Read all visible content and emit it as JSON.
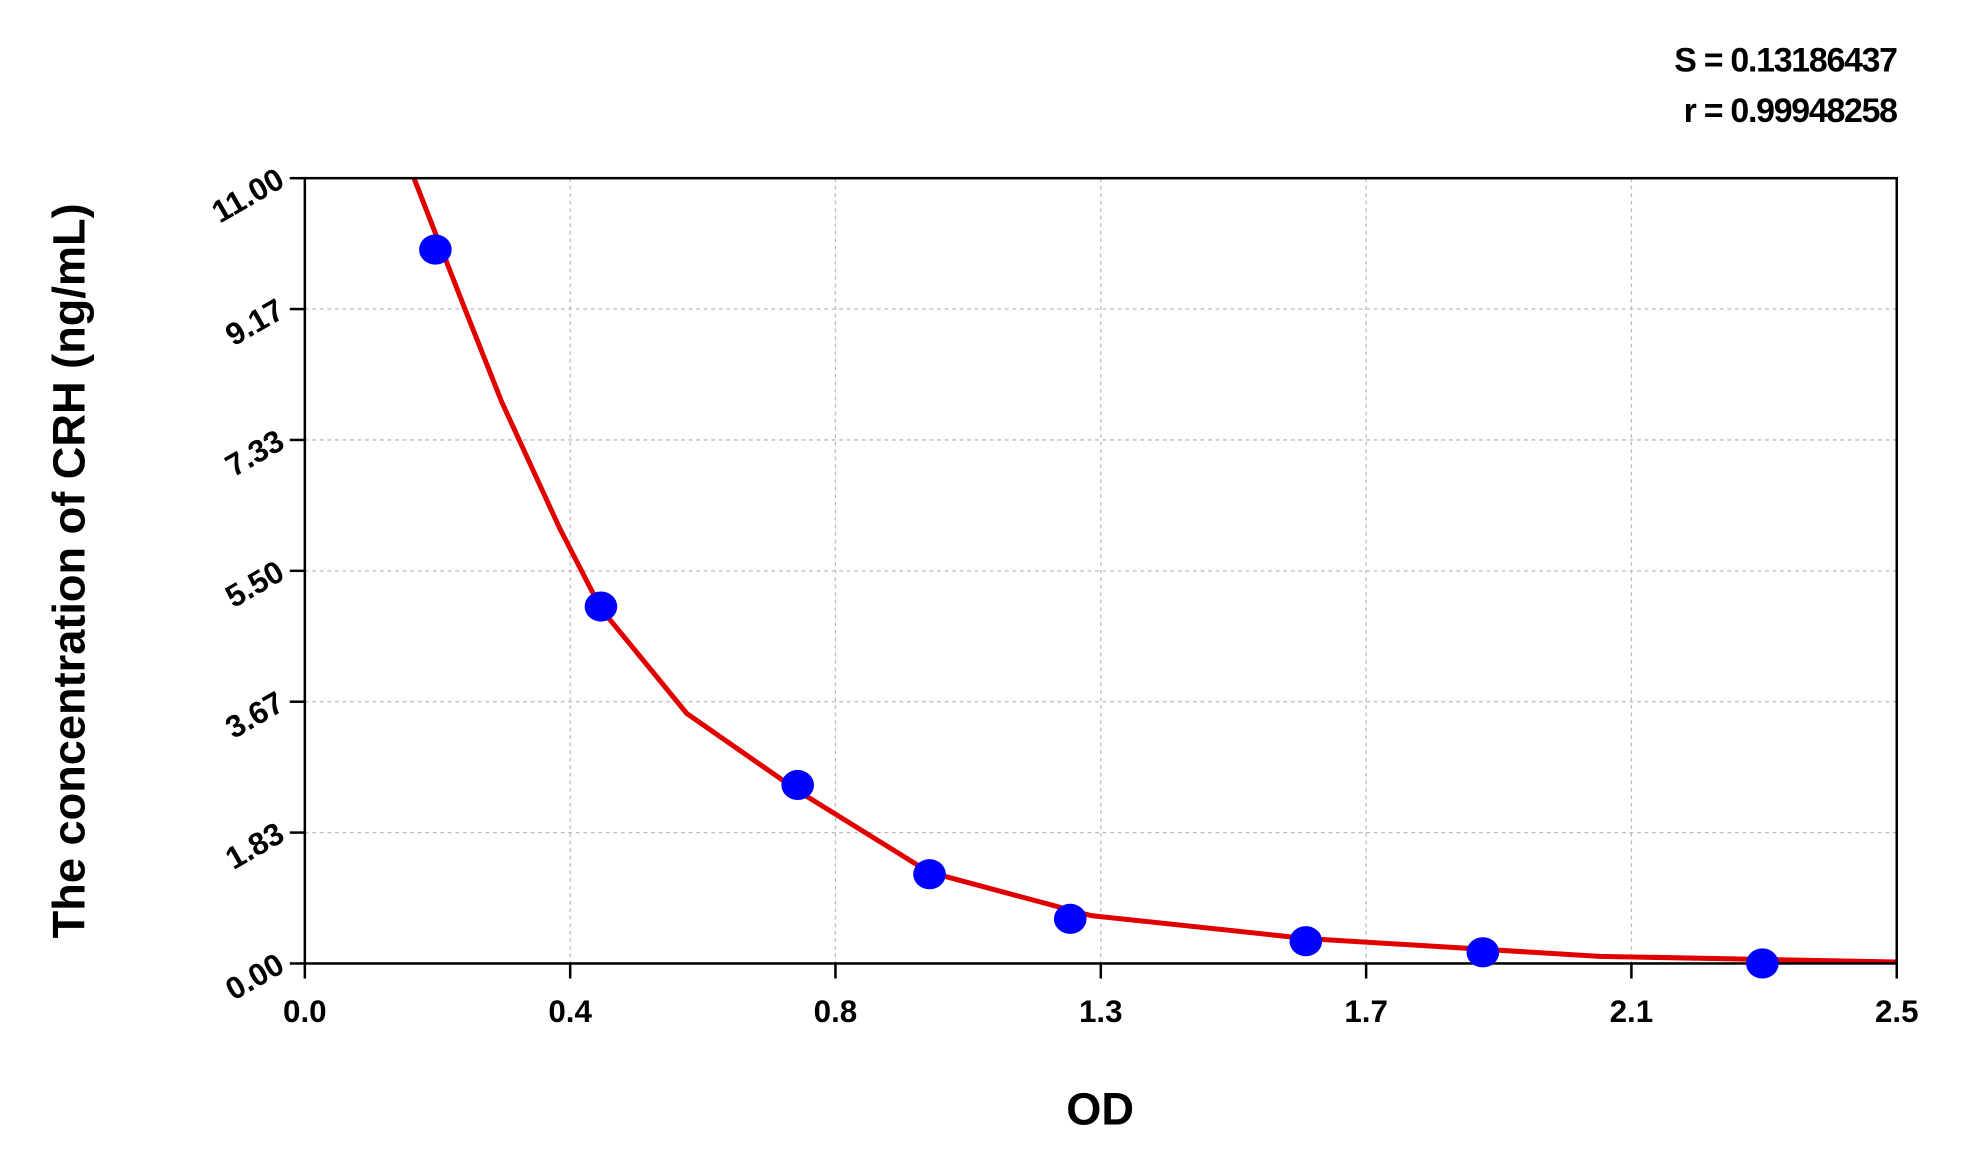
{
  "chart_data": {
    "type": "scatter",
    "xlabel": "OD",
    "ylabel": "The concentration of CRH (ng/mL)",
    "annotations": [
      "S = 0.13186437",
      "r = 0.99948258"
    ],
    "xlim": [
      0,
      2.5
    ],
    "xticks": [
      {
        "value": 0,
        "label": "0.0"
      },
      {
        "value": 0.4167,
        "label": "0.4"
      },
      {
        "value": 0.8333,
        "label": "0.8"
      },
      {
        "value": 1.25,
        "label": "1.3"
      },
      {
        "value": 1.6667,
        "label": "1.7"
      },
      {
        "value": 2.0833,
        "label": "2.1"
      },
      2.5
    ],
    "ylim": [
      0,
      11
    ],
    "yticks": [
      {
        "value": 0,
        "label": "0.00"
      },
      {
        "value": 1.8333,
        "label": "1.83"
      },
      {
        "value": 3.6667,
        "label": "3.67"
      },
      {
        "value": 5.5,
        "label": "5.50"
      },
      {
        "value": 7.3333,
        "label": "7.33"
      },
      {
        "value": 9.1667,
        "label": "9.17"
      },
      {
        "value": 11,
        "label": "11.00"
      }
    ],
    "grid": true,
    "series": [
      {
        "color": "#0000ff",
        "mode": "markers",
        "x": [
          0.205,
          0.465,
          0.774,
          0.981,
          1.202,
          1.572,
          1.85,
          2.289
        ],
        "values": [
          10,
          5,
          2.5,
          1.25,
          0.625,
          0.312,
          0.156,
          0
        ]
      },
      {
        "color": "#e00000",
        "mode": "line",
        "x": [
          0.167,
          0.25,
          0.309,
          0.4,
          0.465,
          0.6,
          0.774,
          0.98,
          1.235,
          1.572,
          2.033,
          2.5
        ],
        "values": [
          11.1,
          9.2,
          7.87,
          6.1,
          4.97,
          3.5,
          2.42,
          1.28,
          0.67,
          0.35,
          0.1,
          0.02
        ]
      }
    ]
  }
}
